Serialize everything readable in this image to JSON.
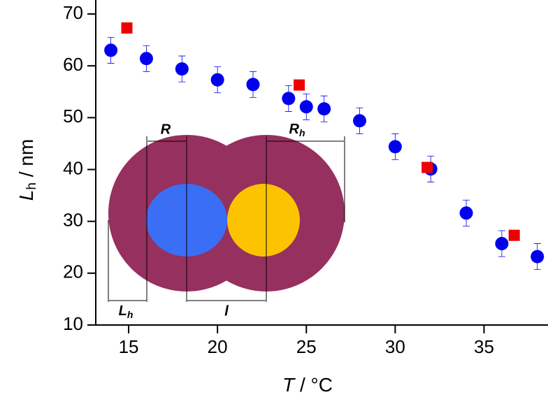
{
  "chart_data": {
    "type": "scatter",
    "xlabel": {
      "symbol": "T",
      "unit": " / °C"
    },
    "ylabel": {
      "symbol": "L",
      "subscript": "h",
      "unit": " / nm"
    },
    "xlim": [
      13.15,
      38.6
    ],
    "ylim": [
      10,
      70
    ],
    "xticks": [
      15,
      20,
      25,
      30,
      35
    ],
    "yticks": [
      10,
      20,
      30,
      40,
      50,
      60,
      70
    ],
    "series": [
      {
        "color": "#0000ee",
        "marker": "circle",
        "x": [
          14,
          16,
          18,
          20,
          22,
          24,
          25,
          26,
          28,
          30,
          32,
          34,
          36,
          38
        ],
        "values": [
          63.0,
          61.4,
          59.4,
          57.3,
          56.4,
          53.7,
          52.1,
          51.7,
          49.4,
          44.4,
          40.1,
          31.6,
          25.7,
          23.2
        ],
        "errors": [
          2.5,
          2.5,
          2.5,
          2.5,
          2.5,
          2.5,
          2.5,
          2.5,
          2.5,
          2.5,
          2.5,
          2.5,
          2.5,
          2.5
        ]
      },
      {
        "color": "#ee0000",
        "marker": "square",
        "x": [
          14.9,
          24.6,
          31.8,
          36.7
        ],
        "values": [
          67.3,
          56.3,
          40.4,
          27.3
        ]
      }
    ]
  },
  "inset": {
    "R": "R",
    "Rh": {
      "main": "R",
      "sub": "h"
    },
    "Lh": {
      "main": "L",
      "sub": "h"
    },
    "l": "l"
  }
}
